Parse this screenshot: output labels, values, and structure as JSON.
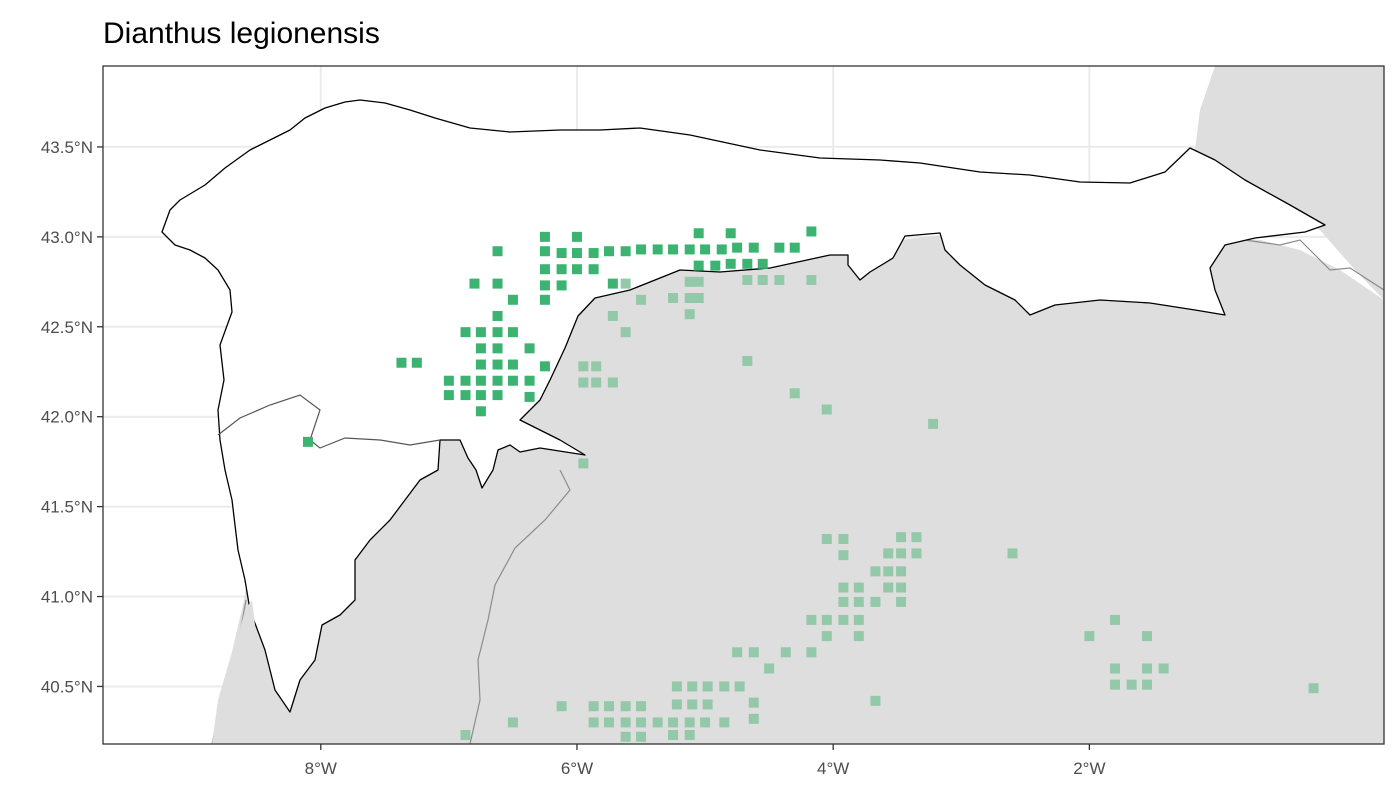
{
  "title": "Dianthus legionensis",
  "colors": {
    "inside_region": "#3cb371",
    "outside_region": "#93c9a8",
    "land_outside": "#dedede",
    "region_fill": "#ffffff",
    "border": "#000000",
    "admin_line": "#8c8c8c",
    "grid": "#ebebeb"
  },
  "chart_data": {
    "type": "scatter",
    "title": "Dianthus legionensis",
    "xlabel": "",
    "ylabel": "",
    "x_ticks": [
      {
        "value": -8,
        "label": "8°W"
      },
      {
        "value": -6,
        "label": "6°W"
      },
      {
        "value": -4,
        "label": "4°W"
      },
      {
        "value": -2,
        "label": "2°W"
      }
    ],
    "y_ticks": [
      {
        "value": 40.5,
        "label": "40.5°N"
      },
      {
        "value": 41.0,
        "label": "41.0°N"
      },
      {
        "value": 41.5,
        "label": "41.5°N"
      },
      {
        "value": 42.0,
        "label": "42.0°N"
      },
      {
        "value": 42.5,
        "label": "42.5°N"
      },
      {
        "value": 43.0,
        "label": "43.0°N"
      },
      {
        "value": 43.5,
        "label": "43.5°N"
      }
    ],
    "xlim": [
      -9.7,
      0.3
    ],
    "ylim": [
      40.18,
      43.95
    ],
    "grid": true,
    "legend": "none",
    "series": [
      {
        "points": [
          [
            -6.25,
            43.0
          ],
          [
            -6.0,
            43.0
          ],
          [
            -5.05,
            43.02
          ],
          [
            -4.8,
            43.02
          ],
          [
            -4.17,
            43.03
          ],
          [
            -6.25,
            42.92
          ],
          [
            -6.12,
            42.91
          ],
          [
            -6.0,
            42.91
          ],
          [
            -5.87,
            42.91
          ],
          [
            -5.75,
            42.92
          ],
          [
            -5.62,
            42.92
          ],
          [
            -5.5,
            42.93
          ],
          [
            -5.37,
            42.93
          ],
          [
            -5.25,
            42.93
          ],
          [
            -5.12,
            42.93
          ],
          [
            -5.0,
            42.93
          ],
          [
            -4.87,
            42.93
          ],
          [
            -4.75,
            42.94
          ],
          [
            -4.62,
            42.94
          ],
          [
            -4.42,
            42.94
          ],
          [
            -4.3,
            42.94
          ],
          [
            -6.25,
            42.82
          ],
          [
            -6.12,
            42.82
          ],
          [
            -6.0,
            42.82
          ],
          [
            -5.87,
            42.82
          ],
          [
            -5.05,
            42.84
          ],
          [
            -4.92,
            42.84
          ],
          [
            -4.8,
            42.85
          ],
          [
            -4.67,
            42.85
          ],
          [
            -4.55,
            42.85
          ],
          [
            -6.25,
            42.73
          ],
          [
            -6.12,
            42.73
          ],
          [
            -5.72,
            42.74
          ],
          [
            -6.62,
            42.92
          ],
          [
            -6.8,
            42.74
          ],
          [
            -6.62,
            42.74
          ],
          [
            -6.5,
            42.65
          ],
          [
            -6.25,
            42.65
          ],
          [
            -6.62,
            42.56
          ],
          [
            -6.87,
            42.47
          ],
          [
            -6.75,
            42.47
          ],
          [
            -6.62,
            42.47
          ],
          [
            -6.5,
            42.47
          ],
          [
            -6.75,
            42.38
          ],
          [
            -6.62,
            42.38
          ],
          [
            -6.37,
            42.38
          ],
          [
            -7.37,
            42.3
          ],
          [
            -7.25,
            42.3
          ],
          [
            -6.75,
            42.29
          ],
          [
            -6.62,
            42.29
          ],
          [
            -6.5,
            42.29
          ],
          [
            -6.25,
            42.28
          ],
          [
            -7.0,
            42.2
          ],
          [
            -6.87,
            42.2
          ],
          [
            -6.75,
            42.2
          ],
          [
            -6.62,
            42.2
          ],
          [
            -6.5,
            42.2
          ],
          [
            -6.37,
            42.2
          ],
          [
            -7.0,
            42.12
          ],
          [
            -6.87,
            42.12
          ],
          [
            -6.75,
            42.12
          ],
          [
            -6.62,
            42.12
          ],
          [
            -6.37,
            42.11
          ],
          [
            -6.75,
            42.03
          ],
          [
            -8.1,
            41.86
          ]
        ]
      },
      {
        "points": [
          [
            -5.62,
            42.74
          ],
          [
            -5.5,
            42.65
          ],
          [
            -5.25,
            42.66
          ],
          [
            -5.12,
            42.66
          ],
          [
            -5.05,
            42.66
          ],
          [
            -5.12,
            42.75
          ],
          [
            -5.05,
            42.75
          ],
          [
            -5.12,
            42.57
          ],
          [
            -5.72,
            42.56
          ],
          [
            -5.62,
            42.47
          ],
          [
            -4.67,
            42.76
          ],
          [
            -4.55,
            42.76
          ],
          [
            -4.42,
            42.76
          ],
          [
            -4.17,
            42.76
          ],
          [
            -5.95,
            42.28
          ],
          [
            -5.85,
            42.28
          ],
          [
            -5.95,
            42.19
          ],
          [
            -5.85,
            42.19
          ],
          [
            -5.72,
            42.19
          ],
          [
            -4.67,
            42.31
          ],
          [
            -4.3,
            42.13
          ],
          [
            -4.05,
            42.04
          ],
          [
            -3.22,
            41.96
          ],
          [
            -5.95,
            41.74
          ],
          [
            -4.05,
            41.32
          ],
          [
            -3.92,
            41.32
          ],
          [
            -3.92,
            41.23
          ],
          [
            -3.47,
            41.33
          ],
          [
            -3.35,
            41.33
          ],
          [
            -3.57,
            41.24
          ],
          [
            -3.47,
            41.24
          ],
          [
            -3.35,
            41.24
          ],
          [
            -2.6,
            41.24
          ],
          [
            -3.67,
            41.14
          ],
          [
            -3.57,
            41.14
          ],
          [
            -3.47,
            41.14
          ],
          [
            -3.92,
            41.05
          ],
          [
            -3.8,
            41.05
          ],
          [
            -3.57,
            41.05
          ],
          [
            -3.47,
            41.05
          ],
          [
            -3.92,
            40.97
          ],
          [
            -3.8,
            40.97
          ],
          [
            -3.67,
            40.97
          ],
          [
            -3.47,
            40.97
          ],
          [
            -4.17,
            40.87
          ],
          [
            -4.05,
            40.87
          ],
          [
            -3.92,
            40.87
          ],
          [
            -3.8,
            40.87
          ],
          [
            -4.05,
            40.78
          ],
          [
            -3.8,
            40.78
          ],
          [
            -1.8,
            40.87
          ],
          [
            -2.0,
            40.78
          ],
          [
            -1.55,
            40.78
          ],
          [
            -4.75,
            40.69
          ],
          [
            -4.62,
            40.69
          ],
          [
            -4.37,
            40.69
          ],
          [
            -4.17,
            40.69
          ],
          [
            -4.5,
            40.6
          ],
          [
            -1.8,
            40.6
          ],
          [
            -1.55,
            40.6
          ],
          [
            -1.42,
            40.6
          ],
          [
            -1.8,
            40.51
          ],
          [
            -1.67,
            40.51
          ],
          [
            -1.55,
            40.51
          ],
          [
            -0.25,
            40.49
          ],
          [
            -5.22,
            40.5
          ],
          [
            -5.1,
            40.5
          ],
          [
            -4.98,
            40.5
          ],
          [
            -4.85,
            40.5
          ],
          [
            -4.73,
            40.5
          ],
          [
            -5.22,
            40.4
          ],
          [
            -5.1,
            40.4
          ],
          [
            -4.98,
            40.4
          ],
          [
            -4.62,
            40.41
          ],
          [
            -3.67,
            40.42
          ],
          [
            -6.12,
            40.39
          ],
          [
            -5.87,
            40.39
          ],
          [
            -5.75,
            40.39
          ],
          [
            -5.62,
            40.39
          ],
          [
            -5.5,
            40.39
          ],
          [
            -5.87,
            40.3
          ],
          [
            -5.75,
            40.3
          ],
          [
            -5.62,
            40.3
          ],
          [
            -5.5,
            40.3
          ],
          [
            -5.37,
            40.3
          ],
          [
            -5.25,
            40.3
          ],
          [
            -5.12,
            40.3
          ],
          [
            -5.0,
            40.3
          ],
          [
            -4.85,
            40.3
          ],
          [
            -4.62,
            40.32
          ],
          [
            -6.5,
            40.3
          ],
          [
            -5.62,
            40.22
          ],
          [
            -5.5,
            40.22
          ],
          [
            -5.25,
            40.23
          ],
          [
            -5.12,
            40.23
          ],
          [
            -6.87,
            40.23
          ]
        ]
      }
    ]
  }
}
